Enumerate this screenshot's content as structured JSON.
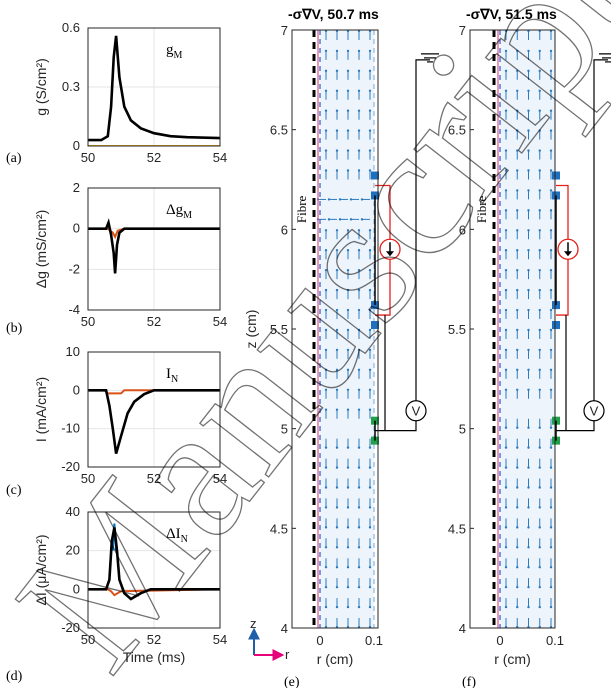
{
  "chart_data": [
    {
      "panel": "(a)",
      "type": "line",
      "annotation": "g_M",
      "ylabel": "g (S/cm²)",
      "xlim": [
        50,
        54
      ],
      "ylim": [
        0,
        0.6
      ],
      "xticks": [
        "50",
        "52",
        "54"
      ],
      "yticks": [
        "0",
        "0.3",
        "0.6"
      ],
      "grid": true,
      "series": [
        {
          "color": "#000000",
          "x": [
            50,
            50.4,
            50.6,
            50.7,
            50.78,
            50.85,
            50.95,
            51.1,
            51.3,
            51.6,
            52.0,
            52.5,
            53.0,
            54
          ],
          "y": [
            0.03,
            0.03,
            0.05,
            0.2,
            0.45,
            0.56,
            0.35,
            0.2,
            0.13,
            0.09,
            0.065,
            0.05,
            0.045,
            0.04
          ]
        },
        {
          "color": "#EDB120",
          "x": [
            50,
            54
          ],
          "y": [
            0.0,
            0.0
          ]
        }
      ]
    },
    {
      "panel": "(b)",
      "type": "line",
      "annotation": "Δg_M",
      "ylabel": "Δg (mS/cm²)",
      "xlim": [
        50,
        54
      ],
      "ylim": [
        -4,
        2
      ],
      "xticks": [
        "50",
        "52",
        "54"
      ],
      "yticks": [
        "-4",
        "-2",
        "0",
        "2"
      ],
      "grid": true,
      "series": [
        {
          "color": "#D95319",
          "x": [
            50,
            50.6,
            50.75,
            50.82,
            50.9,
            51.1,
            54
          ],
          "y": [
            0,
            0,
            -0.2,
            -0.4,
            -0.1,
            0,
            0
          ]
        },
        {
          "color": "#000000",
          "x": [
            50,
            50.55,
            50.62,
            50.7,
            50.78,
            50.82,
            50.88,
            50.95,
            51.1,
            54
          ],
          "y": [
            0,
            0,
            0.3,
            -0.3,
            -1.2,
            -2.2,
            -0.8,
            -0.2,
            0,
            0
          ]
        }
      ]
    },
    {
      "panel": "(c)",
      "type": "line",
      "annotation": "I_N",
      "ylabel": "I (mA/cm²)",
      "xlim": [
        50,
        54
      ],
      "ylim": [
        -20,
        10
      ],
      "xticks": [
        "50",
        "52",
        "54"
      ],
      "yticks": [
        "-20",
        "-10",
        "0",
        "10"
      ],
      "grid": true,
      "series": [
        {
          "color": "#D95319",
          "x": [
            50,
            50.5,
            50.6,
            51.0,
            51.1,
            54
          ],
          "y": [
            0,
            0,
            -0.8,
            -0.8,
            0,
            0
          ]
        },
        {
          "color": "#000000",
          "x": [
            50,
            50.55,
            50.65,
            50.75,
            50.85,
            51.0,
            51.2,
            51.4,
            51.7,
            52.0,
            54
          ],
          "y": [
            0,
            0,
            -4,
            -10,
            -16.5,
            -12,
            -6,
            -3,
            -1,
            0,
            0
          ]
        }
      ]
    },
    {
      "panel": "(d)",
      "type": "line",
      "annotation": "ΔI_N",
      "ylabel": "ΔI (μA/cm²)",
      "xlabel": "Time (ms)",
      "xlim": [
        50,
        54
      ],
      "ylim": [
        -20,
        40
      ],
      "xticks": [
        "50",
        "52",
        "54"
      ],
      "yticks": [
        "-20",
        "0",
        "20",
        "40"
      ],
      "grid": true,
      "series": [
        {
          "color": "#0072BD",
          "x": [
            50.75,
            50.8,
            50.85
          ],
          "y": [
            20,
            34,
            20
          ]
        },
        {
          "color": "#D95319",
          "x": [
            50,
            50.6,
            50.7,
            50.8,
            51.0,
            54
          ],
          "y": [
            0,
            0,
            -1,
            -3,
            -1,
            0
          ]
        },
        {
          "color": "#000000",
          "x": [
            50,
            50.55,
            50.65,
            50.72,
            50.8,
            50.88,
            50.95,
            51.1,
            51.3,
            51.6,
            51.9,
            52.3,
            54
          ],
          "y": [
            0,
            0,
            5,
            25,
            32,
            20,
            5,
            -2,
            -5,
            -2,
            0,
            0,
            0
          ]
        }
      ]
    },
    {
      "panel": "(e)",
      "type": "quiver",
      "title": "-σ∇V, 50.7 ms",
      "xlabel": "r (cm)",
      "ylabel": "z (cm)",
      "xticks": [
        "0",
        "0.1"
      ],
      "yticks": [
        "4",
        "4.5",
        "5",
        "5.5",
        "6",
        "6.5",
        "7"
      ],
      "ylim": [
        4,
        7
      ],
      "fibre_label": "Fibre",
      "meter_label": "V"
    },
    {
      "panel": "(f)",
      "type": "quiver",
      "title": "-σ∇V, 51.5 ms",
      "xlabel": "r (cm)",
      "xticks": [
        "0",
        "0.1"
      ],
      "yticks": [
        "4",
        "4.5",
        "5",
        "5.5",
        "6",
        "6.5",
        "7"
      ],
      "ylim": [
        4,
        7
      ],
      "fibre_label": "Fibre",
      "meter_label": "V"
    }
  ],
  "axis_indicator": {
    "z": "z",
    "r": "r"
  },
  "watermark": "Manuscript"
}
